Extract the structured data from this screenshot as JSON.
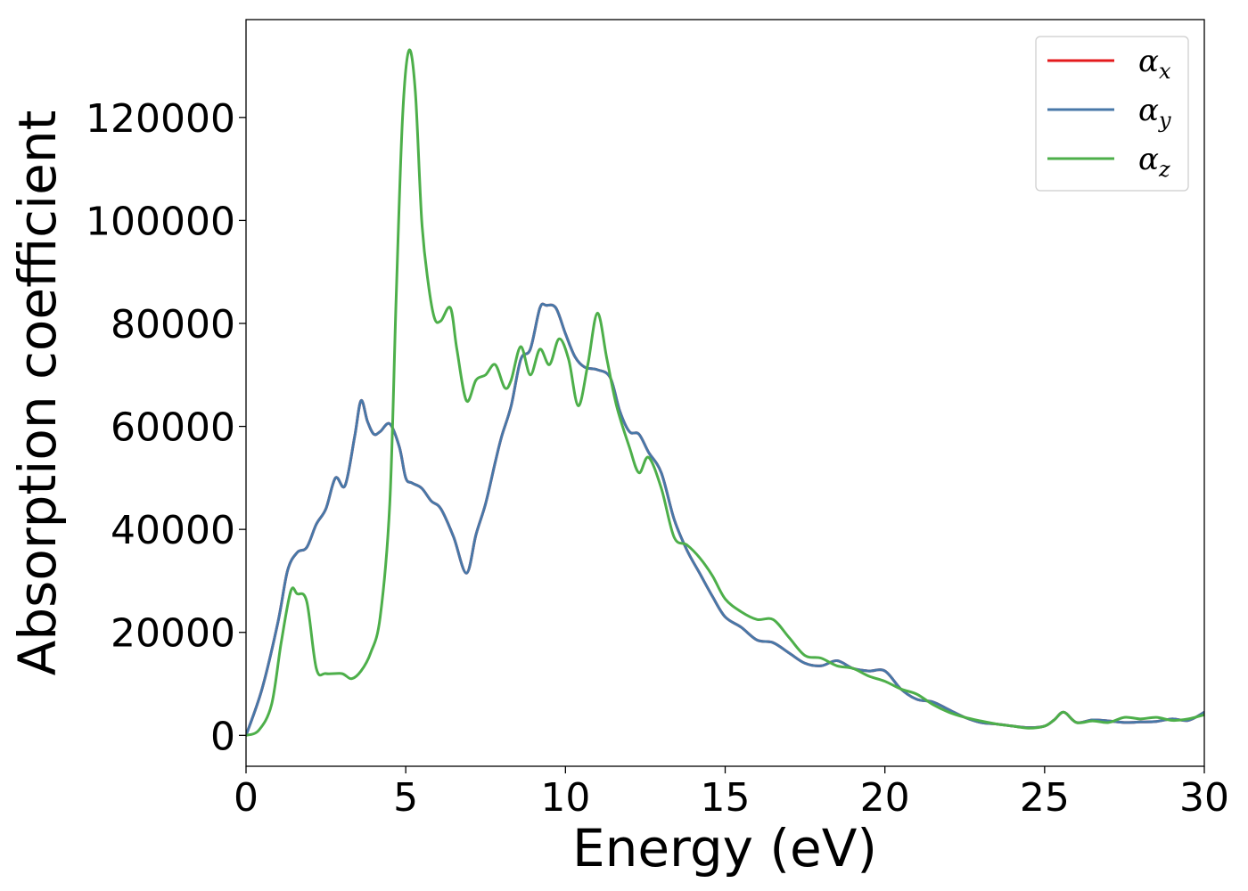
{
  "chart_data": {
    "type": "line",
    "xlabel": "Energy (eV)",
    "ylabel": "Absorption coefficient",
    "xlim": [
      0,
      30
    ],
    "ylim": [
      -6000,
      139000
    ],
    "xticks": [
      0,
      5,
      10,
      15,
      20,
      25,
      30
    ],
    "yticks": [
      0,
      20000,
      40000,
      60000,
      80000,
      100000,
      120000
    ],
    "grid": false,
    "legend_position": "top-right",
    "series": [
      {
        "name": "α_x",
        "symbol": "α",
        "subscript": "x",
        "color": "#e41a1c",
        "x": [
          0,
          0.5,
          1.0,
          1.3,
          1.6,
          1.9,
          2.2,
          2.5,
          2.8,
          3.1,
          3.4,
          3.6,
          3.8,
          4.0,
          4.2,
          4.5,
          4.8,
          5.0,
          5.2,
          5.5,
          5.8,
          6.1,
          6.5,
          6.9,
          7.2,
          7.5,
          7.8,
          8.0,
          8.3,
          8.6,
          8.9,
          9.2,
          9.4,
          9.7,
          10.0,
          10.3,
          10.6,
          11.0,
          11.4,
          11.7,
          12.0,
          12.3,
          12.6,
          13.0,
          13.4,
          13.8,
          14.2,
          14.6,
          15.0,
          15.5,
          16.0,
          16.5,
          17.0,
          17.5,
          18.0,
          18.5,
          19.0,
          19.5,
          20.0,
          20.5,
          21.0,
          21.5,
          22.0,
          22.5,
          23.0,
          23.5,
          24.0,
          24.5,
          25.0,
          25.3,
          25.6,
          26.0,
          26.5,
          27.0,
          27.5,
          28.0,
          28.5,
          29.0,
          29.5,
          30.0
        ],
        "y": [
          0,
          9000,
          22000,
          32000,
          35500,
          36500,
          41000,
          44000,
          50000,
          48500,
          58000,
          65000,
          61000,
          58500,
          59000,
          60500,
          56000,
          50000,
          49000,
          48000,
          45500,
          44000,
          38500,
          31500,
          39000,
          45000,
          53000,
          58000,
          64000,
          73000,
          75000,
          83000,
          83500,
          83000,
          78000,
          73500,
          71500,
          71000,
          69500,
          63000,
          59000,
          58500,
          55000,
          51000,
          42000,
          36000,
          31500,
          27000,
          23000,
          21000,
          18500,
          18000,
          16000,
          14000,
          13500,
          14500,
          13000,
          12500,
          12500,
          9000,
          7000,
          6500,
          5000,
          3500,
          2500,
          2200,
          1800,
          1500,
          1800,
          3000,
          4500,
          2500,
          3000,
          2800,
          2500,
          2600,
          2700,
          3200,
          2900,
          4500
        ]
      },
      {
        "name": "α_y",
        "symbol": "α",
        "subscript": "y",
        "color": "#4878a8",
        "x": [
          0,
          0.5,
          1.0,
          1.3,
          1.6,
          1.9,
          2.2,
          2.5,
          2.8,
          3.1,
          3.4,
          3.6,
          3.8,
          4.0,
          4.2,
          4.5,
          4.8,
          5.0,
          5.2,
          5.5,
          5.8,
          6.1,
          6.5,
          6.9,
          7.2,
          7.5,
          7.8,
          8.0,
          8.3,
          8.6,
          8.9,
          9.2,
          9.4,
          9.7,
          10.0,
          10.3,
          10.6,
          11.0,
          11.4,
          11.7,
          12.0,
          12.3,
          12.6,
          13.0,
          13.4,
          13.8,
          14.2,
          14.6,
          15.0,
          15.5,
          16.0,
          16.5,
          17.0,
          17.5,
          18.0,
          18.5,
          19.0,
          19.5,
          20.0,
          20.5,
          21.0,
          21.5,
          22.0,
          22.5,
          23.0,
          23.5,
          24.0,
          24.5,
          25.0,
          25.3,
          25.6,
          26.0,
          26.5,
          27.0,
          27.5,
          28.0,
          28.5,
          29.0,
          29.5,
          30.0
        ],
        "y": [
          0,
          9000,
          22000,
          32000,
          35500,
          36500,
          41000,
          44000,
          50000,
          48500,
          58000,
          65000,
          61000,
          58500,
          59000,
          60500,
          56000,
          50000,
          49000,
          48000,
          45500,
          44000,
          38500,
          31500,
          39000,
          45000,
          53000,
          58000,
          64000,
          73000,
          75000,
          83000,
          83500,
          83000,
          78000,
          73500,
          71500,
          71000,
          69500,
          63000,
          59000,
          58500,
          55000,
          51000,
          42000,
          36000,
          31500,
          27000,
          23000,
          21000,
          18500,
          18000,
          16000,
          14000,
          13500,
          14500,
          13000,
          12500,
          12500,
          9000,
          7000,
          6500,
          5000,
          3500,
          2500,
          2200,
          1800,
          1500,
          1800,
          3000,
          4500,
          2500,
          3000,
          2800,
          2500,
          2600,
          2700,
          3200,
          2900,
          4500
        ]
      },
      {
        "name": "α_z",
        "symbol": "α",
        "subscript": "z",
        "color": "#4daf4a",
        "x": [
          0,
          0.4,
          0.8,
          1.1,
          1.4,
          1.6,
          1.9,
          2.2,
          2.5,
          3.0,
          3.3,
          3.6,
          3.9,
          4.2,
          4.5,
          4.7,
          4.9,
          5.1,
          5.3,
          5.5,
          5.7,
          5.9,
          6.1,
          6.4,
          6.6,
          6.9,
          7.2,
          7.5,
          7.8,
          8.1,
          8.3,
          8.6,
          8.9,
          9.2,
          9.5,
          9.8,
          10.1,
          10.4,
          10.7,
          11.0,
          11.3,
          11.6,
          12.0,
          12.3,
          12.6,
          13.0,
          13.4,
          13.8,
          14.2,
          14.6,
          15.0,
          15.5,
          16.0,
          16.5,
          17.0,
          17.5,
          18.0,
          18.5,
          19.0,
          19.5,
          20.0,
          20.5,
          21.0,
          21.5,
          22.0,
          22.5,
          23.0,
          23.5,
          24.0,
          24.5,
          25.0,
          25.3,
          25.6,
          26.0,
          26.5,
          27.0,
          27.5,
          28.0,
          28.5,
          29.0,
          29.5,
          30.0
        ],
        "y": [
          0,
          1000,
          6000,
          18000,
          28000,
          27500,
          26000,
          13000,
          12000,
          12000,
          11000,
          12500,
          16000,
          23000,
          45000,
          85000,
          120000,
          133000,
          125000,
          100000,
          88000,
          81000,
          80500,
          83000,
          75000,
          65000,
          69000,
          70000,
          72000,
          67500,
          69000,
          75500,
          70000,
          75000,
          72000,
          77000,
          73000,
          64000,
          72000,
          82000,
          73000,
          64000,
          56000,
          51000,
          54000,
          48000,
          38500,
          37000,
          34500,
          31000,
          26500,
          24000,
          22500,
          22500,
          19000,
          15500,
          15000,
          13500,
          13000,
          11500,
          10500,
          9000,
          8000,
          6000,
          4500,
          3500,
          2800,
          2200,
          1800,
          1400,
          1800,
          3000,
          4500,
          2500,
          2800,
          2500,
          3500,
          3200,
          3500,
          2900,
          3200,
          4000
        ]
      }
    ]
  }
}
